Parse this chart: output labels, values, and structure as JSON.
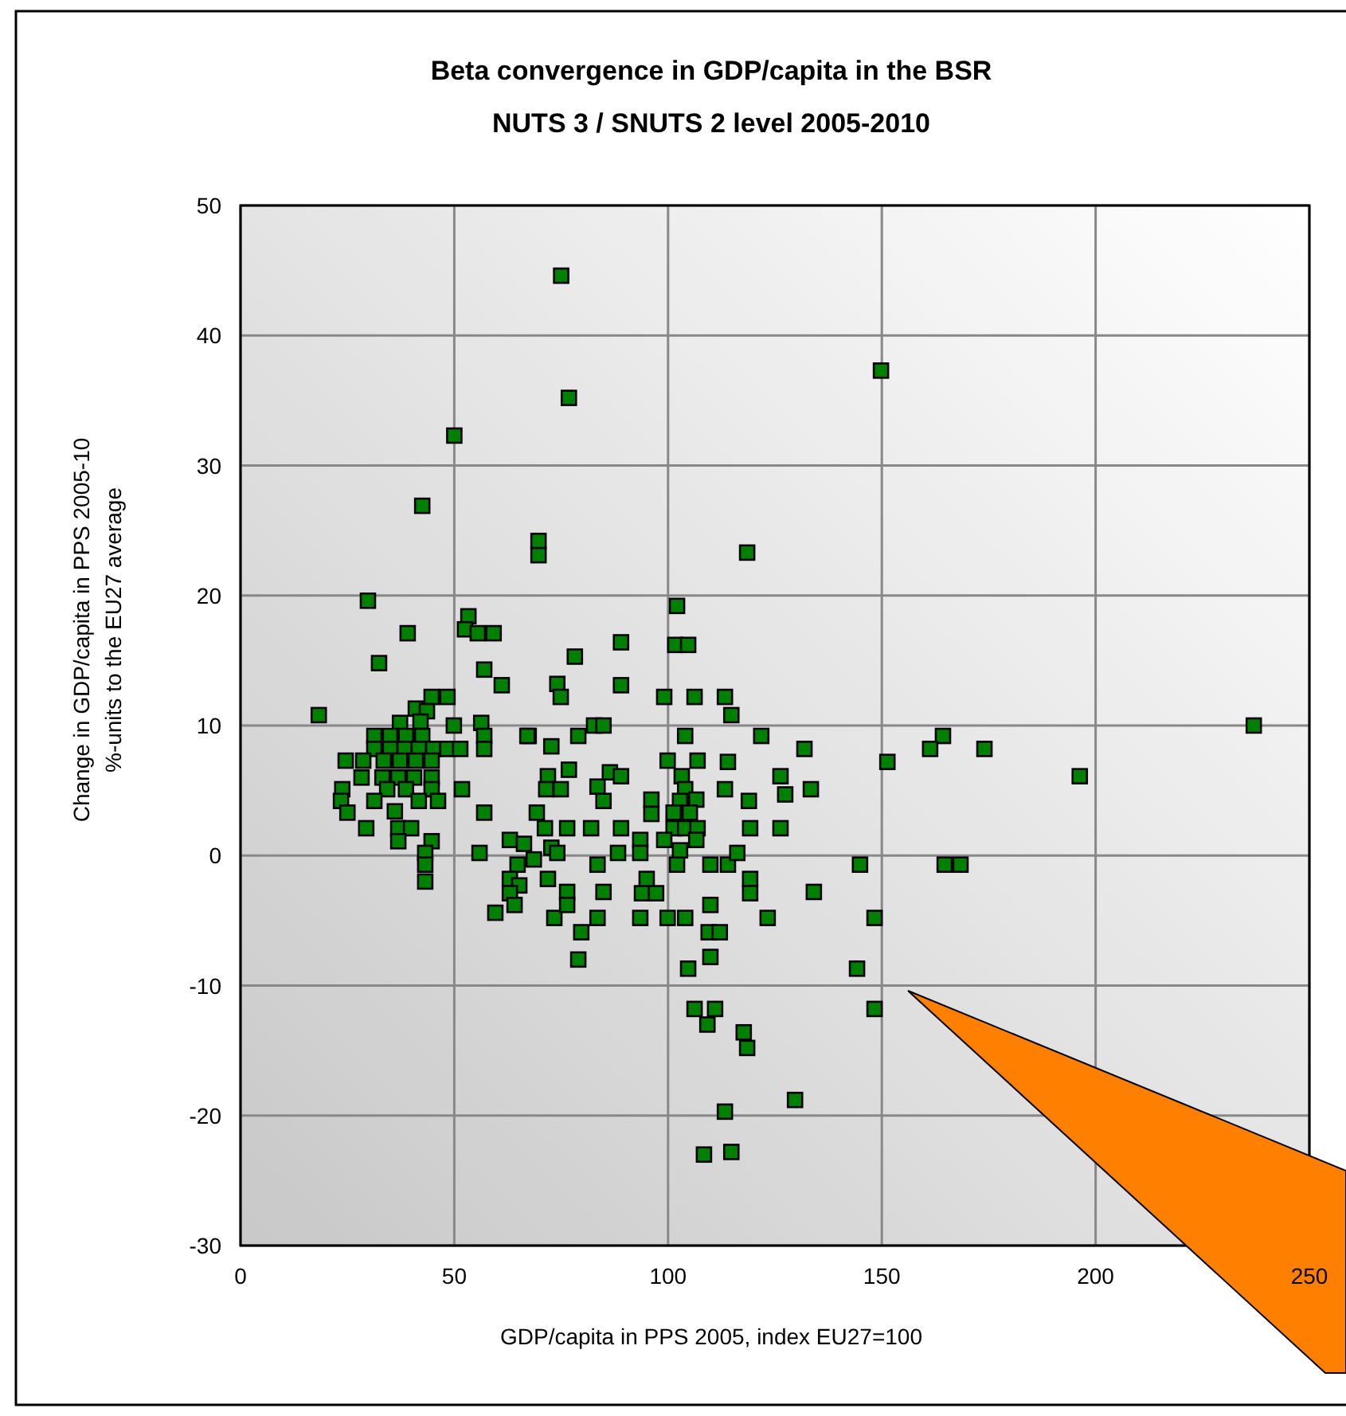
{
  "chart_data": {
    "type": "scatter",
    "title": "Beta convergence in GDP/capita in the BSR\nNUTS 3 / SNUTS 2 level 2005-2010",
    "xlabel": "GDP/capita in PPS 2005, index EU27=100",
    "ylabel": "Change in GDP/capita in PPS 2005-10\n%-units to the EU27 average",
    "color": "#008000",
    "marker": "square",
    "grid": true,
    "xlim": [
      0,
      250
    ],
    "xticks": [
      0,
      50,
      100,
      150,
      200,
      250
    ],
    "ylim": [
      -30,
      50
    ],
    "yticks": [
      -30,
      -20,
      -10,
      0,
      10,
      20,
      30,
      40,
      50
    ],
    "x": [
      75,
      76.8,
      50,
      42.5,
      69.7,
      69.7,
      29.8,
      149.8,
      237,
      131.9,
      164.3,
      161.3,
      174,
      151.3,
      133.4,
      196.3,
      144.9,
      164.7,
      168.4,
      134.1,
      148.3,
      144.2,
      148.3,
      123.3,
      119.2,
      119.2,
      109.9,
      99.9,
      104,
      93.5,
      83.5,
      73.4,
      79.7,
      79,
      109.5,
      112.1,
      109.9,
      104.7,
      106.2,
      111,
      109.2,
      117.7,
      118.5,
      129.7,
      113.3,
      108.4,
      114.8,
      71.9,
      76.4,
      76.4,
      84.9,
      95,
      93.9,
      97.2,
      83.5,
      102.1,
      109.9,
      114,
      118.5,
      102.1,
      101.7,
      104.7,
      89,
      78.2,
      74.1,
      74.9,
      89,
      99.1,
      106.2,
      113.3,
      114.8,
      67.4,
      79,
      82.7,
      84.9,
      72.7,
      104,
      121.8,
      99.9,
      106.9,
      114,
      71.9,
      76.8,
      86.4,
      89,
      103.2,
      126.3,
      71.5,
      74.9,
      83.5,
      104,
      106.6,
      113.3,
      127.4,
      84.9,
      69.3,
      96.1,
      96.1,
      102.8,
      118.9,
      101.3,
      105.1,
      71.2,
      76.4,
      82,
      89,
      101.3,
      104,
      106.9,
      119.2,
      126.3,
      93.5,
      99.1,
      106.6,
      72.7,
      74.1,
      68.6,
      88.3,
      93.5,
      102.8,
      116.2,
      53.3,
      52.5,
      55.5,
      59.2,
      39.1,
      32.4,
      57,
      61.1,
      18.3,
      44.7,
      48.4,
      41,
      43.6,
      37.3,
      42.1,
      49.9,
      56.3,
      57,
      57,
      67.1,
      31.3,
      35,
      38.7,
      42.5,
      31.3,
      35,
      38.4,
      41.7,
      45.1,
      48.4,
      51.4,
      24.6,
      28.7,
      33.5,
      37.3,
      41,
      44.7,
      28.3,
      33.2,
      36.9,
      40.6,
      44.7,
      23.8,
      34.3,
      38.7,
      44.7,
      51.8,
      23.5,
      31.3,
      41.7,
      46.2,
      25,
      36.1,
      57,
      29.4,
      36.9,
      39.9,
      36.9,
      44.7,
      43.2,
      43.2,
      43.2,
      55.9,
      63,
      66.3,
      64.8,
      63,
      65.2,
      63,
      64.1,
      59.6
    ],
    "values": [
      44.6,
      35.2,
      32.3,
      26.9,
      24.2,
      23.1,
      19.6,
      37.3,
      10,
      8.2,
      9.2,
      8.2,
      8.2,
      7.2,
      5.1,
      6.1,
      -0.7,
      -0.7,
      -0.7,
      -2.8,
      -4.8,
      -8.7,
      -11.8,
      -4.8,
      -1.8,
      -2.9,
      -3.8,
      -4.8,
      -4.8,
      -4.8,
      -4.8,
      -4.8,
      -5.9,
      -8,
      -5.9,
      -5.9,
      -7.8,
      -8.7,
      -11.8,
      -11.8,
      -13,
      -13.6,
      -14.8,
      -18.8,
      -19.7,
      -23,
      -22.8,
      -1.8,
      -2.8,
      -3.8,
      -2.8,
      -1.8,
      -2.9,
      -2.9,
      -0.7,
      -0.7,
      -0.7,
      -0.7,
      23.3,
      19.2,
      16.2,
      16.2,
      16.4,
      15.3,
      13.2,
      12.2,
      13.1,
      12.2,
      12.2,
      12.2,
      10.8,
      9.2,
      9.2,
      10,
      10,
      8.4,
      9.2,
      9.2,
      7.3,
      7.3,
      7.2,
      6.1,
      6.6,
      6.4,
      6.1,
      6.1,
      6.1,
      5.1,
      5.1,
      5.3,
      5.1,
      4.3,
      5.1,
      4.7,
      4.2,
      3.3,
      4.3,
      3.2,
      4.2,
      4.2,
      3.3,
      3.3,
      2.1,
      2.1,
      2.1,
      2.1,
      2.1,
      2.1,
      2.1,
      2.1,
      2.1,
      1.2,
      1.2,
      1.2,
      0.6,
      0.2,
      -0.3,
      0.2,
      0.2,
      0.4,
      0.2,
      18.4,
      17.4,
      17.1,
      17.1,
      17.1,
      14.8,
      14.3,
      13.1,
      10.8,
      12.2,
      12.2,
      11.3,
      11.1,
      10.2,
      10.3,
      10,
      10.2,
      9.2,
      8.2,
      9.2,
      9.2,
      9.2,
      9.2,
      9.2,
      8.2,
      8.2,
      8.2,
      8.2,
      8.2,
      8.2,
      8.2,
      7.3,
      7.3,
      7.3,
      7.3,
      7.3,
      7.3,
      6,
      6,
      6,
      6,
      6,
      5.1,
      5.1,
      5.1,
      5.1,
      5.1,
      4.2,
      4.2,
      4.2,
      4.2,
      3.3,
      3.4,
      3.3,
      2.1,
      2.1,
      2.1,
      1.1,
      1.1,
      0.2,
      -0.7,
      -2,
      0.2,
      1.2,
      0.9,
      -0.7,
      -1.8,
      -2.3,
      -2.9,
      -3.8,
      -4.4
    ]
  }
}
